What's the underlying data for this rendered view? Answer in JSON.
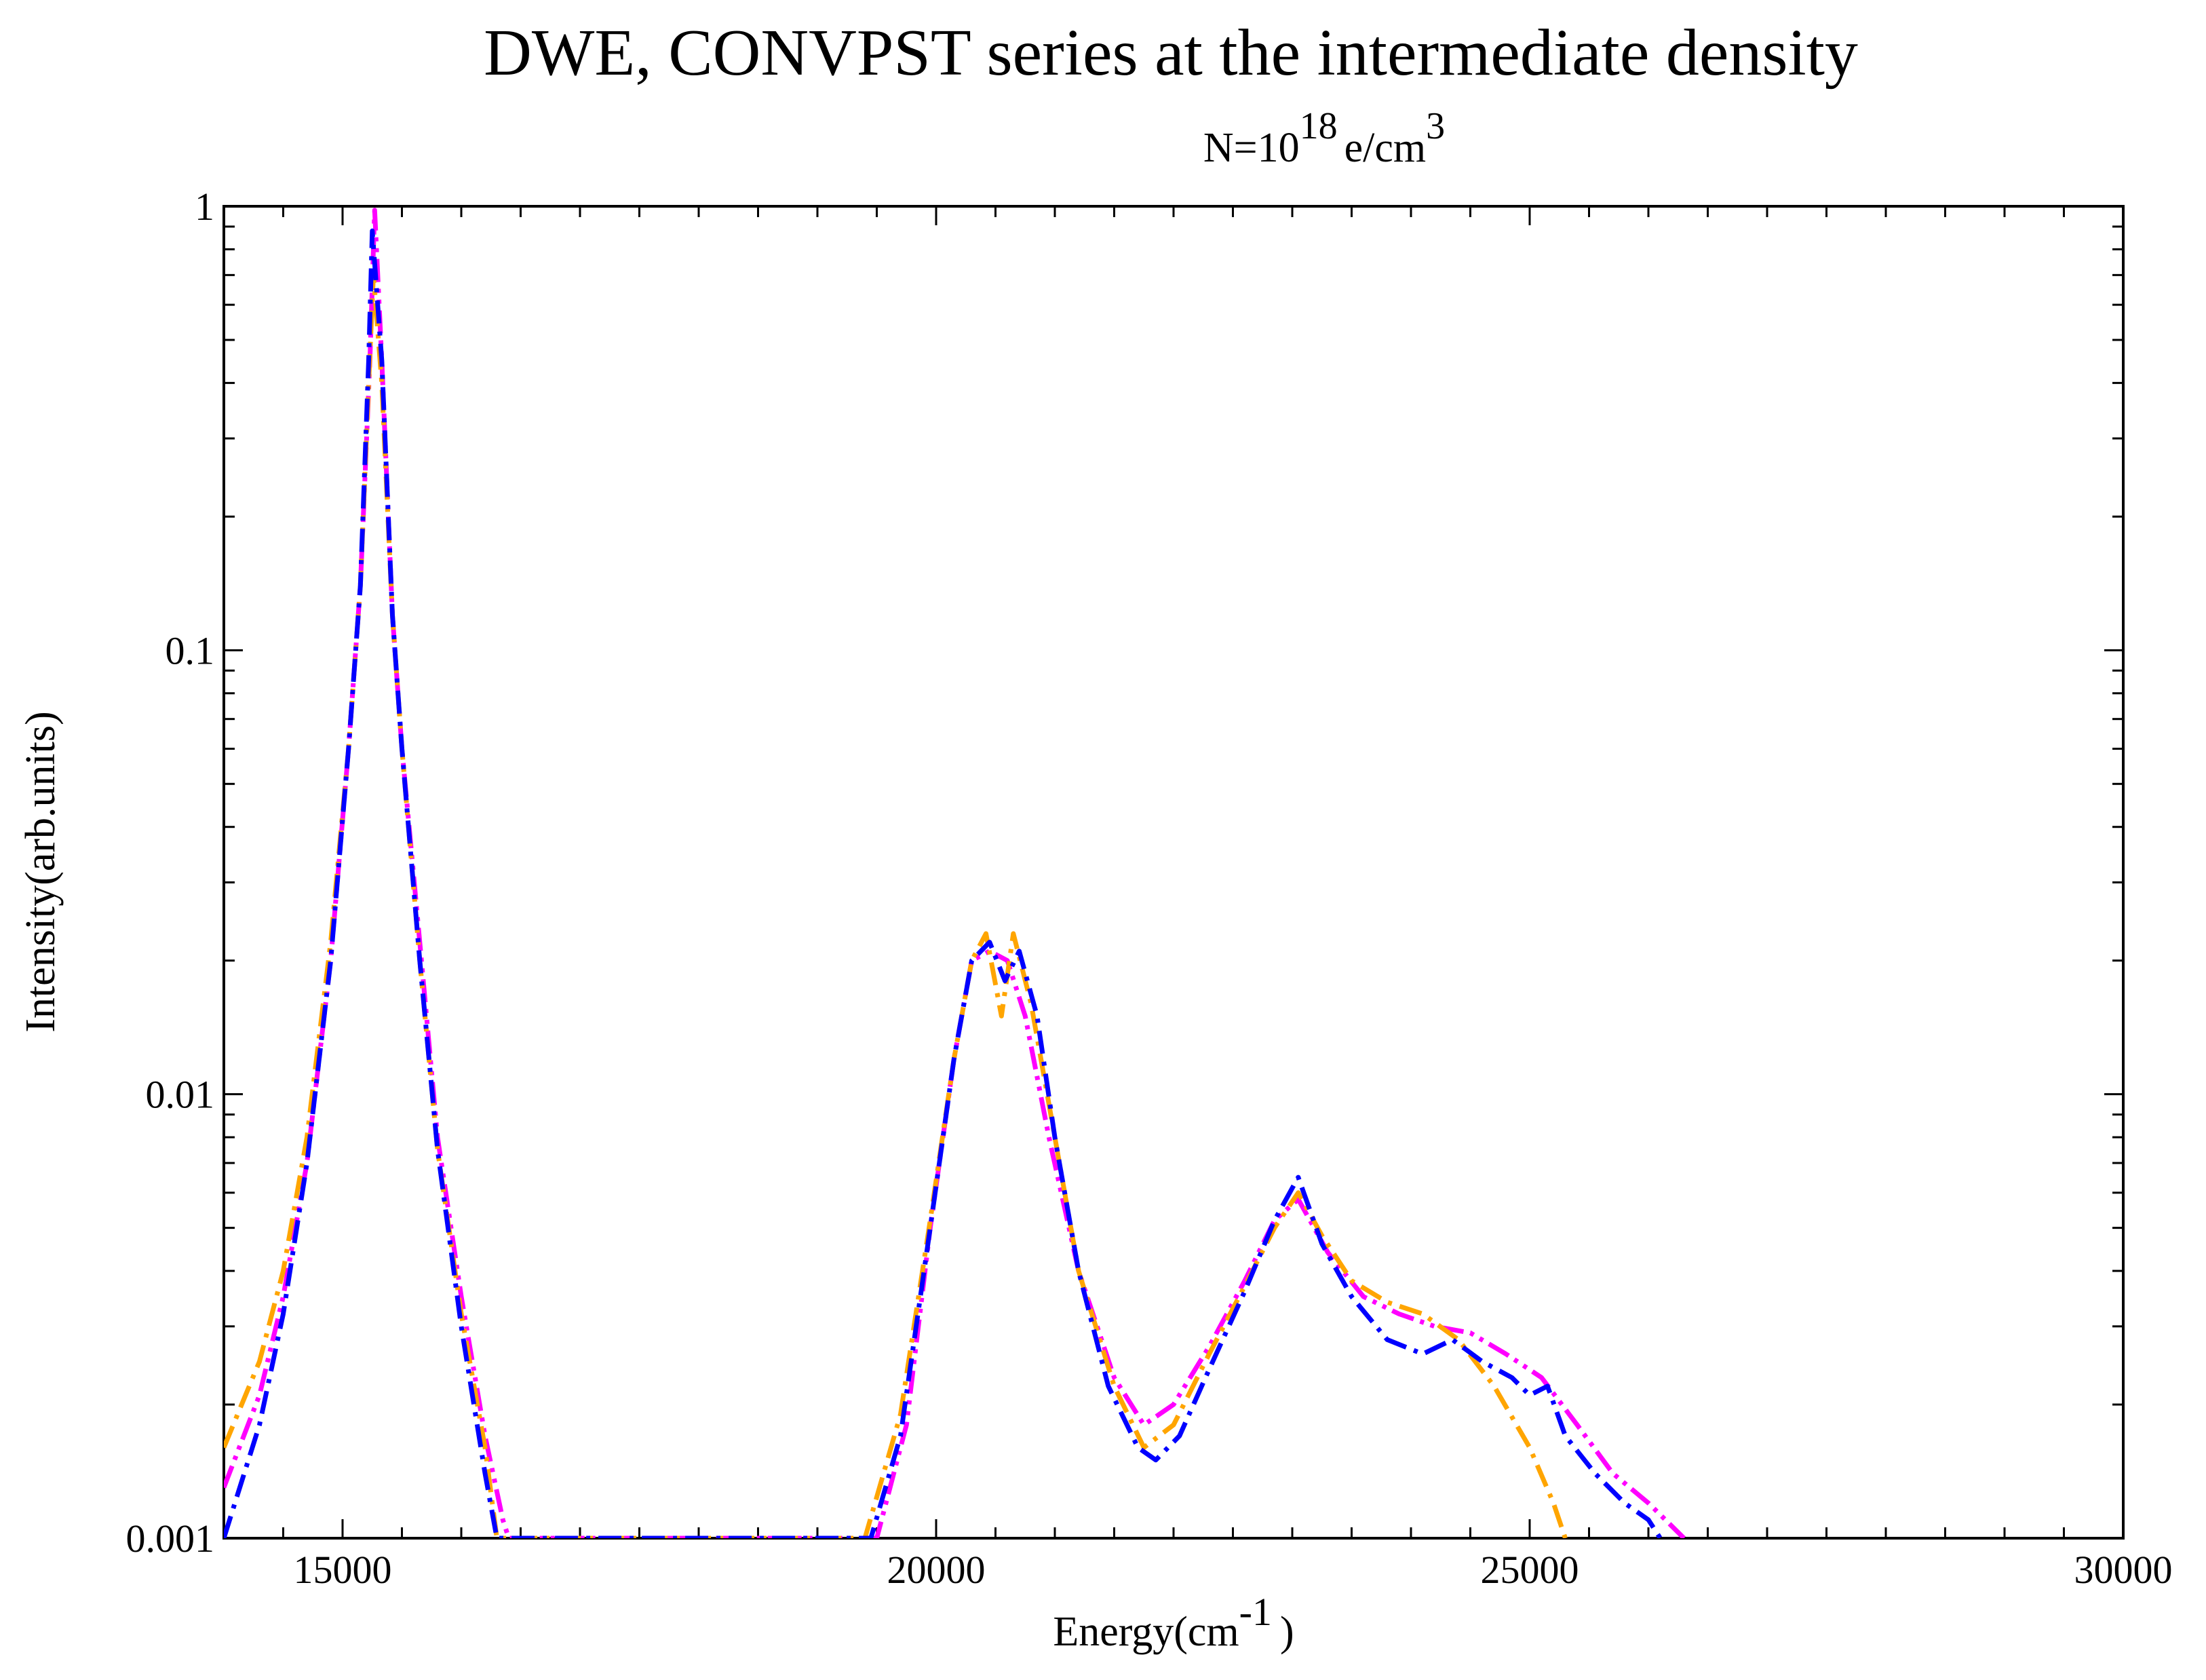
{
  "chart_data": {
    "type": "line",
    "title": "DWE, CONVPST series at the intermediate density",
    "subtitle": {
      "prefix": "N=10",
      "exp1": "18",
      "mid": "e/cm",
      "exp2": "3"
    },
    "xlabel": {
      "main": "Energy(cm",
      "sup": "-1",
      "close": ")"
    },
    "ylabel": "Intensity(arb.units)",
    "xlim": [
      14000,
      30000
    ],
    "ylim": [
      0.001,
      1
    ],
    "yscale": "log",
    "grid": false,
    "legend": "none",
    "x_ticks": [
      "15000",
      "20000",
      "25000",
      "30000"
    ],
    "y_ticks": [
      "0.001",
      "0.01",
      "0.1",
      "1"
    ],
    "series": [
      {
        "color": "#ff00ff",
        "dash": "dash-dot-dot",
        "points": [
          [
            14000,
            0.0013
          ],
          [
            14300,
            0.0021
          ],
          [
            14500,
            0.0035
          ],
          [
            14700,
            0.007
          ],
          [
            14900,
            0.02
          ],
          [
            15050,
            0.06
          ],
          [
            15150,
            0.14
          ],
          [
            15230,
            0.45
          ],
          [
            15270,
            0.98
          ],
          [
            15330,
            0.45
          ],
          [
            15420,
            0.12
          ],
          [
            15500,
            0.06
          ],
          [
            15650,
            0.022
          ],
          [
            15800,
            0.008
          ],
          [
            16000,
            0.0035
          ],
          [
            16200,
            0.0017
          ],
          [
            16350,
            0.0011
          ],
          [
            16400,
            0.001
          ],
          [
            19500,
            0.001
          ],
          [
            19750,
            0.0018
          ],
          [
            19950,
            0.005
          ],
          [
            20150,
            0.012
          ],
          [
            20300,
            0.02
          ],
          [
            20450,
            0.021
          ],
          [
            20600,
            0.02
          ],
          [
            20750,
            0.015
          ],
          [
            20950,
            0.008
          ],
          [
            21200,
            0.004
          ],
          [
            21500,
            0.0023
          ],
          [
            21750,
            0.0018
          ],
          [
            22000,
            0.002
          ],
          [
            22300,
            0.0027
          ],
          [
            22600,
            0.0038
          ],
          [
            22850,
            0.0052
          ],
          [
            23050,
            0.0058
          ],
          [
            23300,
            0.0044
          ],
          [
            23600,
            0.0035
          ],
          [
            23900,
            0.0032
          ],
          [
            24200,
            0.003
          ],
          [
            24500,
            0.0029
          ],
          [
            24800,
            0.0026
          ],
          [
            25100,
            0.0023
          ],
          [
            25400,
            0.0018
          ],
          [
            25700,
            0.0014
          ],
          [
            26000,
            0.0012
          ],
          [
            26300,
            0.001
          ]
        ]
      },
      {
        "color": "#ffa500",
        "dash": "dash-dot",
        "points": [
          [
            14000,
            0.0016
          ],
          [
            14300,
            0.0025
          ],
          [
            14500,
            0.004
          ],
          [
            14700,
            0.008
          ],
          [
            14900,
            0.022
          ],
          [
            15050,
            0.06
          ],
          [
            15150,
            0.14
          ],
          [
            15220,
            0.4
          ],
          [
            15260,
            0.7
          ],
          [
            15330,
            0.4
          ],
          [
            15420,
            0.12
          ],
          [
            15500,
            0.06
          ],
          [
            15650,
            0.02
          ],
          [
            15800,
            0.0075
          ],
          [
            16000,
            0.0032
          ],
          [
            16200,
            0.0016
          ],
          [
            16300,
            0.001
          ],
          [
            19400,
            0.001
          ],
          [
            19700,
            0.0019
          ],
          [
            19950,
            0.0052
          ],
          [
            20150,
            0.012
          ],
          [
            20300,
            0.02
          ],
          [
            20420,
            0.023
          ],
          [
            20550,
            0.015
          ],
          [
            20650,
            0.023
          ],
          [
            20800,
            0.016
          ],
          [
            21000,
            0.008
          ],
          [
            21200,
            0.004
          ],
          [
            21500,
            0.0022
          ],
          [
            21750,
            0.0016
          ],
          [
            22000,
            0.0018
          ],
          [
            22300,
            0.0026
          ],
          [
            22600,
            0.0037
          ],
          [
            22850,
            0.005
          ],
          [
            23050,
            0.006
          ],
          [
            23250,
            0.0048
          ],
          [
            23500,
            0.0038
          ],
          [
            23800,
            0.0034
          ],
          [
            24100,
            0.0032
          ],
          [
            24400,
            0.0028
          ],
          [
            24700,
            0.0022
          ],
          [
            25000,
            0.0016
          ],
          [
            25200,
            0.0012
          ],
          [
            25300,
            0.001
          ]
        ]
      },
      {
        "color": "#0000ff",
        "dash": "dash-dot",
        "points": [
          [
            14000,
            0.001
          ],
          [
            14300,
            0.0018
          ],
          [
            14500,
            0.0032
          ],
          [
            14700,
            0.007
          ],
          [
            14900,
            0.02
          ],
          [
            15050,
            0.06
          ],
          [
            15150,
            0.14
          ],
          [
            15220,
            0.45
          ],
          [
            15250,
            0.88
          ],
          [
            15330,
            0.45
          ],
          [
            15420,
            0.12
          ],
          [
            15500,
            0.06
          ],
          [
            15650,
            0.02
          ],
          [
            15800,
            0.0075
          ],
          [
            16000,
            0.003
          ],
          [
            16200,
            0.0014
          ],
          [
            16300,
            0.001
          ],
          [
            19450,
            0.001
          ],
          [
            19700,
            0.0017
          ],
          [
            19950,
            0.005
          ],
          [
            20150,
            0.012
          ],
          [
            20300,
            0.02
          ],
          [
            20450,
            0.022
          ],
          [
            20580,
            0.018
          ],
          [
            20700,
            0.021
          ],
          [
            20850,
            0.015
          ],
          [
            21000,
            0.008
          ],
          [
            21200,
            0.004
          ],
          [
            21450,
            0.0022
          ],
          [
            21700,
            0.0016
          ],
          [
            21850,
            0.0015
          ],
          [
            22050,
            0.0017
          ],
          [
            22300,
            0.0024
          ],
          [
            22600,
            0.0036
          ],
          [
            22850,
            0.0052
          ],
          [
            23050,
            0.0065
          ],
          [
            23250,
            0.0046
          ],
          [
            23500,
            0.0035
          ],
          [
            23800,
            0.0028
          ],
          [
            24100,
            0.0026
          ],
          [
            24350,
            0.0028
          ],
          [
            24600,
            0.0025
          ],
          [
            24850,
            0.0023
          ],
          [
            25000,
            0.0021
          ],
          [
            25150,
            0.0022
          ],
          [
            25300,
            0.0017
          ],
          [
            25550,
            0.0014
          ],
          [
            25800,
            0.0012
          ],
          [
            26000,
            0.0011
          ],
          [
            26100,
            0.001
          ]
        ]
      }
    ]
  }
}
